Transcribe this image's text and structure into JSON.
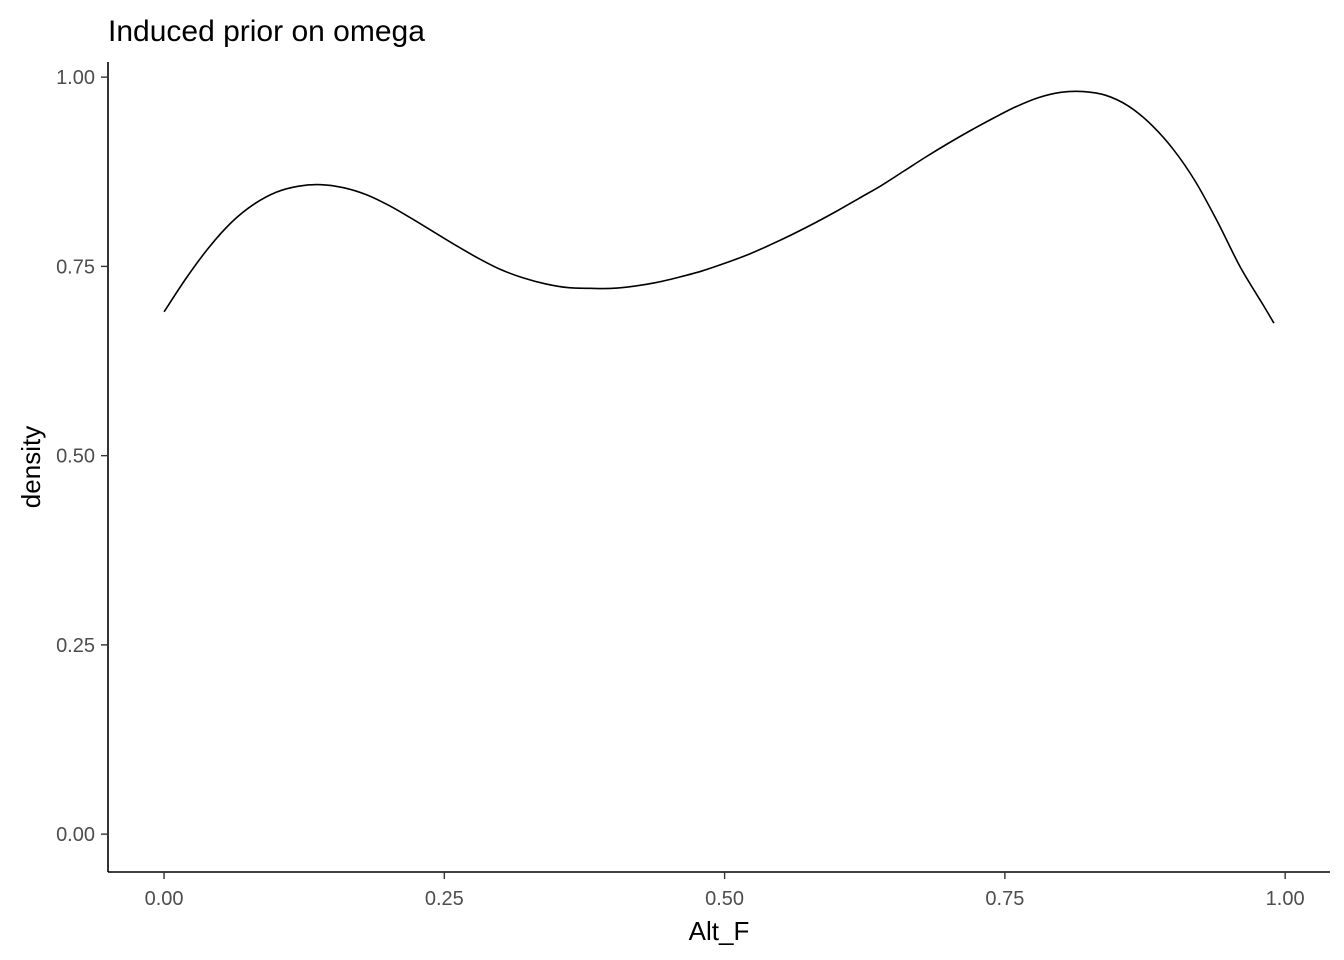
{
  "chart_data": {
    "type": "line",
    "title": "Induced prior on omega",
    "xlabel": "Alt_F",
    "ylabel": "density",
    "xlim": [
      -0.05,
      1.04
    ],
    "ylim": [
      -0.05,
      1.02
    ],
    "x_ticks": [
      0.0,
      0.25,
      0.5,
      0.75,
      1.0
    ],
    "x_tick_labels": [
      "0.00",
      "0.25",
      "0.50",
      "0.75",
      "1.00"
    ],
    "y_ticks": [
      0.0,
      0.25,
      0.5,
      0.75,
      1.0
    ],
    "y_tick_labels": [
      "0.00",
      "0.25",
      "0.50",
      "0.75",
      "1.00"
    ],
    "grid": false,
    "line_color": "#000000",
    "series": [
      {
        "x": [
          0.0,
          0.02,
          0.04,
          0.06,
          0.08,
          0.1,
          0.12,
          0.14,
          0.16,
          0.18,
          0.2,
          0.22,
          0.24,
          0.26,
          0.28,
          0.3,
          0.32,
          0.34,
          0.36,
          0.38,
          0.4,
          0.42,
          0.44,
          0.46,
          0.48,
          0.5,
          0.52,
          0.54,
          0.56,
          0.58,
          0.6,
          0.62,
          0.64,
          0.66,
          0.68,
          0.7,
          0.72,
          0.74,
          0.76,
          0.78,
          0.8,
          0.82,
          0.84,
          0.86,
          0.88,
          0.9,
          0.92,
          0.94,
          0.96,
          0.98,
          0.99
        ],
        "y": [
          0.69,
          0.735,
          0.775,
          0.808,
          0.832,
          0.848,
          0.856,
          0.858,
          0.854,
          0.845,
          0.831,
          0.814,
          0.796,
          0.778,
          0.761,
          0.746,
          0.735,
          0.727,
          0.722,
          0.721,
          0.721,
          0.724,
          0.729,
          0.736,
          0.744,
          0.754,
          0.765,
          0.778,
          0.792,
          0.807,
          0.823,
          0.84,
          0.857,
          0.876,
          0.895,
          0.913,
          0.93,
          0.946,
          0.961,
          0.973,
          0.98,
          0.981,
          0.976,
          0.962,
          0.938,
          0.905,
          0.862,
          0.808,
          0.749,
          0.7,
          0.675
        ]
      }
    ]
  }
}
